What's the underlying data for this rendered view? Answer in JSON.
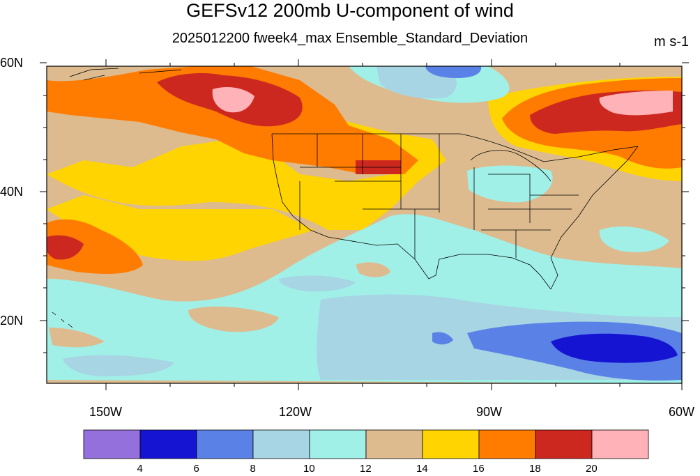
{
  "title": "GEFSv12 200mb U-component of wind",
  "subtitle": "2025012200 fweek4_max Ensemble_Standard_Deviation",
  "units": "m s-1",
  "lat_labels": [
    "60N",
    "40N",
    "20N"
  ],
  "lon_labels": [
    "150W",
    "120W",
    "90W",
    "60W"
  ],
  "colorbar": {
    "ticks": [
      "4",
      "6",
      "8",
      "10",
      "12",
      "14",
      "16",
      "18",
      "20"
    ],
    "colors": [
      "#9370DB",
      "#1414D2",
      "#5A82E6",
      "#A7D5E3",
      "#A0F0E8",
      "#DDBB8E",
      "#FFD400",
      "#FF7C00",
      "#CD2820",
      "#FFB2B8"
    ]
  }
}
